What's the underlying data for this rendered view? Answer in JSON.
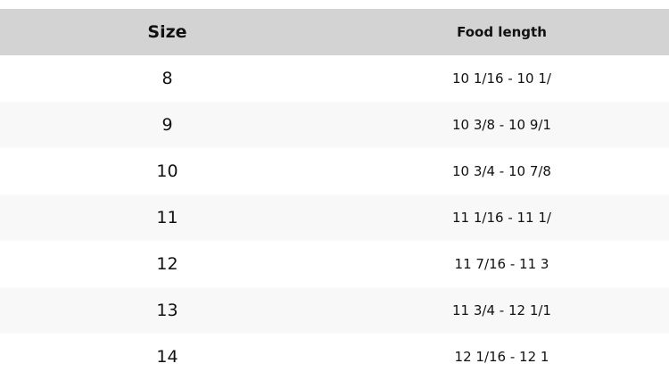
{
  "table": {
    "headers": [
      "Size",
      "Food length"
    ],
    "rows": [
      [
        "8",
        "10 1/16 - 10 1/"
      ],
      [
        "9",
        "10 3/8 - 10 9/1"
      ],
      [
        "10",
        "10 3/4 - 10 7/8"
      ],
      [
        "11",
        "11 1/16 - 11 1/"
      ],
      [
        "12",
        "11 7/16 - 11 3"
      ],
      [
        "13",
        "11 3/4 - 12 1/1"
      ],
      [
        "14",
        "12 1/16 - 12 1"
      ]
    ]
  }
}
